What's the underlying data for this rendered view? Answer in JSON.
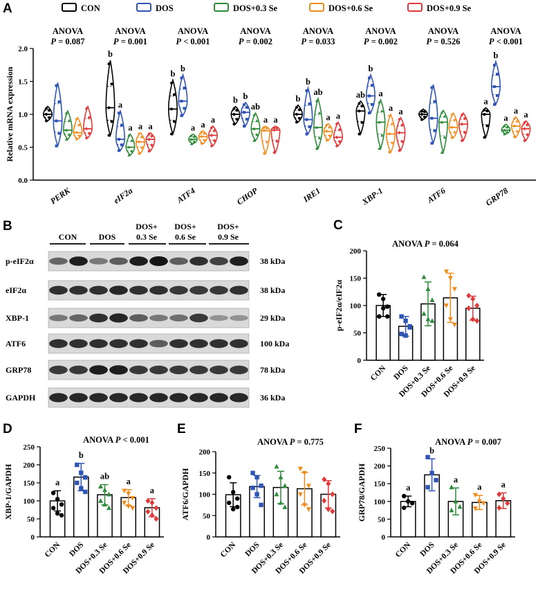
{
  "colors": {
    "CON": "#000000",
    "DOS": "#2f54b4",
    "DOS+0.3 Se": "#2e8b3a",
    "DOS+0.6 Se": "#f08c1e",
    "DOS+0.9 Se": "#e03a3a"
  },
  "panel_labels": {
    "A": "A",
    "B": "B",
    "C": "C",
    "D": "D",
    "E": "E",
    "F": "F"
  },
  "legend": [
    "CON",
    "DOS",
    "DOS+0.3 Se",
    "DOS+0.6 Se",
    "DOS+0.9 Se"
  ],
  "chart_data": [
    {
      "panel": "A",
      "type": "violin",
      "ylabel": "Relative mRNA expression",
      "ylim": [
        0,
        2.0
      ],
      "yticks": [
        "0.0",
        "0.5",
        "1.0",
        "1.5",
        "2.0"
      ],
      "groups": [
        "CON",
        "DOS",
        "DOS+0.3 Se",
        "DOS+0.6 Se",
        "DOS+0.9 Se"
      ],
      "genes": [
        {
          "name": "PERK",
          "anova": "ANOVA",
          "p": "P = 0.087",
          "letters": [
            "",
            "",
            "",
            "",
            ""
          ],
          "medians": [
            1.0,
            0.9,
            0.76,
            0.72,
            0.78
          ],
          "mins": [
            0.9,
            0.52,
            0.62,
            0.62,
            0.64
          ],
          "maxs": [
            1.12,
            1.48,
            1.05,
            0.95,
            1.12
          ]
        },
        {
          "name": "eIF2a",
          "anova": "ANOVA",
          "p": "P = 0.001",
          "letters": [
            "b",
            "a",
            "a",
            "a",
            "a"
          ],
          "medians": [
            1.1,
            0.62,
            0.5,
            0.58,
            0.62
          ],
          "mins": [
            0.68,
            0.45,
            0.38,
            0.4,
            0.44
          ],
          "maxs": [
            1.82,
            1.05,
            0.7,
            0.72,
            0.72
          ]
        },
        {
          "name": "ATF4",
          "anova": "ANOVA",
          "p": "P < 0.001",
          "letters": [
            "b",
            "b",
            "a",
            "a",
            "a"
          ],
          "medians": [
            1.08,
            1.2,
            0.62,
            0.66,
            0.68
          ],
          "mins": [
            0.7,
            0.98,
            0.55,
            0.55,
            0.52
          ],
          "maxs": [
            1.52,
            1.6,
            0.7,
            0.75,
            0.82
          ]
        },
        {
          "name": "CHOP",
          "anova": "ANOVA",
          "p": "P = 0.002",
          "letters": [
            "b",
            "b",
            "ab",
            "a",
            "a"
          ],
          "medians": [
            1.0,
            1.03,
            0.78,
            0.75,
            0.76
          ],
          "mins": [
            0.85,
            0.82,
            0.6,
            0.4,
            0.42
          ],
          "maxs": [
            1.12,
            1.18,
            1.02,
            0.82,
            0.82
          ]
        },
        {
          "name": "IRE1",
          "anova": "ANOVA",
          "p": "P = 0.033",
          "letters": [
            "b",
            "b",
            "ab",
            "a",
            "a"
          ],
          "medians": [
            1.0,
            0.92,
            0.8,
            0.74,
            0.65
          ],
          "mins": [
            0.88,
            0.7,
            0.48,
            0.6,
            0.52
          ],
          "maxs": [
            1.14,
            1.4,
            1.24,
            0.86,
            0.88
          ]
        },
        {
          "name": "XBP-1",
          "anova": "ANOVA",
          "p": "P = 0.002",
          "letters": [
            "ab",
            "b",
            "a",
            "a",
            "a"
          ],
          "medians": [
            1.05,
            1.28,
            0.88,
            0.7,
            0.72
          ],
          "mins": [
            0.7,
            1.02,
            0.48,
            0.42,
            0.45
          ],
          "maxs": [
            1.2,
            1.6,
            1.22,
            1.0,
            0.95
          ]
        },
        {
          "name": "ATF6",
          "anova": "ANOVA",
          "p": "P = 0.526",
          "letters": [
            "",
            "",
            "",
            "",
            ""
          ],
          "medians": [
            1.0,
            0.94,
            0.88,
            0.8,
            0.85
          ],
          "mins": [
            0.92,
            0.56,
            0.42,
            0.64,
            0.6
          ],
          "maxs": [
            1.08,
            1.45,
            1.06,
            1.02,
            1.02
          ]
        },
        {
          "name": "GRP78",
          "anova": "ANOVA",
          "p": "P < 0.001",
          "letters": [
            "a",
            "b",
            "a",
            "a",
            "a"
          ],
          "medians": [
            1.0,
            1.42,
            0.76,
            0.82,
            0.78
          ],
          "mins": [
            0.65,
            1.15,
            0.7,
            0.65,
            0.6
          ],
          "maxs": [
            1.1,
            1.8,
            0.85,
            0.96,
            0.9
          ]
        }
      ]
    },
    {
      "panel": "B",
      "type": "western_blot",
      "groups": [
        "CON",
        "DOS",
        "DOS+\n0.3 Se",
        "DOS+\n0.6 Se",
        "DOS+\n0.9 Se"
      ],
      "group_line1": [
        "CON",
        "DOS",
        "DOS+",
        "DOS+",
        "DOS+"
      ],
      "group_line2": [
        "",
        "",
        "0.3 Se",
        "0.6 Se",
        "0.9 Se"
      ],
      "bands": [
        {
          "protein": "p-eIF2α",
          "kda": "38 kDa",
          "intensity": [
            0.55,
            0.95,
            0.45,
            0.6,
            0.95,
            1.0,
            0.6,
            0.85,
            0.75,
            0.95
          ]
        },
        {
          "protein": "eIF2α",
          "kda": "38 kDa",
          "intensity": [
            0.85,
            0.85,
            0.85,
            0.9,
            0.85,
            0.85,
            0.8,
            0.8,
            0.8,
            0.85
          ]
        },
        {
          "protein": "XBP-1",
          "kda": "29 kDa",
          "intensity": [
            0.45,
            0.55,
            0.85,
            0.9,
            0.6,
            0.45,
            0.5,
            0.8,
            0.3,
            0.3
          ]
        },
        {
          "protein": "ATF6",
          "kda": "100 kDa",
          "intensity": [
            0.85,
            0.85,
            0.85,
            0.85,
            0.85,
            0.6,
            0.85,
            0.85,
            0.85,
            0.85
          ]
        },
        {
          "protein": "GRP78",
          "kda": "78 kDa",
          "intensity": [
            0.8,
            0.8,
            0.95,
            0.95,
            0.8,
            0.8,
            0.8,
            0.8,
            0.8,
            0.8
          ]
        },
        {
          "protein": "GAPDH",
          "kda": "36 kDa",
          "intensity": [
            0.9,
            0.9,
            0.9,
            0.9,
            0.9,
            0.9,
            0.9,
            0.9,
            0.9,
            0.9
          ]
        }
      ]
    },
    {
      "panel": "C",
      "type": "bar",
      "title": "ANOVA",
      "p": "P = 0.064",
      "ylabel": "p-eIF2α/eIF2α",
      "ylim": [
        0,
        200
      ],
      "yticks": [
        "0",
        "50",
        "100",
        "150",
        "200"
      ],
      "categories": [
        "CON",
        "DOS",
        "DOS+0.3 Se",
        "DOS+0.6 Se",
        "DOS+0.9 Se"
      ],
      "values": [
        100,
        62,
        103,
        114,
        95
      ],
      "sd": [
        20,
        18,
        40,
        45,
        22
      ],
      "letters": [
        "",
        "",
        "",
        "",
        ""
      ],
      "points": [
        [
          120,
          112,
          98,
          80,
          95,
          80
        ],
        [
          80,
          72,
          60,
          48,
          45,
          62
        ],
        [
          152,
          130,
          110,
          85,
          75,
          72
        ],
        [
          162,
          150,
          130,
          100,
          75,
          65
        ],
        [
          118,
          112,
          100,
          95,
          75,
          72
        ]
      ]
    },
    {
      "panel": "D",
      "type": "bar",
      "title": "ANOVA",
      "p": "P < 0.001",
      "ylabel": "XBP-1/GAPDH",
      "ylim": [
        0,
        250
      ],
      "yticks": [
        "0",
        "50",
        "100",
        "150",
        "200",
        "250"
      ],
      "categories": [
        "CON",
        "DOS",
        "DOS+0.3 Se",
        "DOS+0.6 Se",
        "DOS+0.9 Se"
      ],
      "values": [
        100,
        166,
        117,
        109,
        81
      ],
      "sd": [
        28,
        38,
        28,
        22,
        25
      ],
      "letters": [
        "a",
        "b",
        "ab",
        "a",
        "a"
      ],
      "points": [
        [
          122,
          105,
          90,
          80,
          65,
          60
        ],
        [
          200,
          178,
          165,
          150,
          135,
          125
        ],
        [
          140,
          130,
          118,
          100,
          90,
          80
        ],
        [
          128,
          120,
          108,
          95,
          85,
          80
        ],
        [
          100,
          95,
          80,
          70,
          60,
          50
        ]
      ]
    },
    {
      "panel": "E",
      "type": "bar",
      "title": "ANOVA",
      "p": "P = 0.775",
      "ylabel": "ATF6/GAPDH",
      "ylim": [
        0,
        200
      ],
      "yticks": [
        "0",
        "50",
        "100",
        "150",
        "200"
      ],
      "categories": [
        "CON",
        "DOS",
        "DOS+0.3 Se",
        "DOS+0.6 Se",
        "DOS+0.9 Se"
      ],
      "values": [
        99,
        118,
        116,
        113,
        100
      ],
      "sd": [
        28,
        26,
        38,
        38,
        32
      ],
      "letters": [
        "",
        "",
        "",
        "",
        ""
      ],
      "points": [
        [
          140,
          105,
          90,
          80,
          65,
          70
        ],
        [
          150,
          140,
          120,
          115,
          100,
          75
        ],
        [
          165,
          140,
          120,
          100,
          80,
          70
        ],
        [
          160,
          150,
          120,
          100,
          75,
          65
        ],
        [
          135,
          125,
          100,
          85,
          65,
          60
        ]
      ]
    },
    {
      "panel": "F",
      "type": "bar",
      "title": "ANOVA",
      "p": "P = 0.007",
      "ylabel": "GRP78/GAPDH",
      "ylim": [
        0,
        250
      ],
      "yticks": [
        "0",
        "50",
        "100",
        "150",
        "200",
        "250"
      ],
      "categories": [
        "CON",
        "DOS",
        "DOS+0.3 Se",
        "DOS+0.6 Se",
        "DOS+0.9 Se"
      ],
      "values": [
        100,
        175,
        100,
        97,
        102
      ],
      "sd": [
        15,
        45,
        38,
        20,
        22
      ],
      "letters": [
        "a",
        "b",
        "a",
        "a",
        "a"
      ],
      "points": [
        [
          115,
          100,
          95,
          82
        ],
        [
          225,
          180,
          160,
          140
        ],
        [
          140,
          100,
          85,
          75
        ],
        [
          118,
          100,
          95,
          80
        ],
        [
          120,
          108,
          95,
          82
        ]
      ]
    }
  ]
}
